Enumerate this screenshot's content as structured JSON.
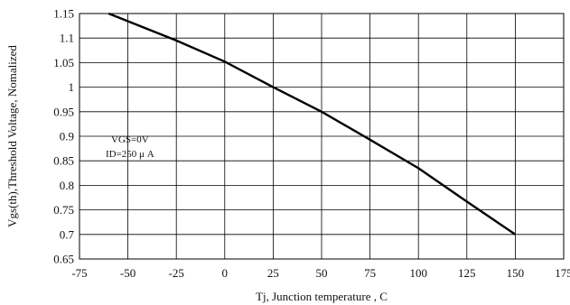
{
  "chart_data": {
    "type": "line",
    "title": "",
    "xlabel": "Tj, Junction temperature , C",
    "ylabel": "Vgs(th),Threshold Voltage, Nomalized",
    "xlim": [
      -75,
      175
    ],
    "ylim": [
      0.65,
      1.15
    ],
    "xticks": [
      -75,
      -50,
      -25,
      0,
      25,
      50,
      75,
      100,
      125,
      150,
      175
    ],
    "yticks": [
      0.65,
      0.7,
      0.75,
      0.8,
      0.85,
      0.9,
      0.95,
      1,
      1.05,
      1.1,
      1.15
    ],
    "x_tick_labels": [
      "-75",
      "-50",
      "-25",
      "0",
      "25",
      "50",
      "75",
      "100",
      "125",
      "150",
      "175"
    ],
    "y_tick_labels": [
      "0.65",
      "0.7",
      "0.75",
      "0.8",
      "0.85",
      "0.9",
      "0.95",
      "1",
      "1.05",
      "1.1",
      "1.15"
    ],
    "grid": true,
    "series": [
      {
        "x": [
          -60,
          -25,
          0,
          25,
          50,
          75,
          100,
          125,
          150
        ],
        "y": [
          1.15,
          1.095,
          1.052,
          1.0,
          0.95,
          0.893,
          0.835,
          0.767,
          0.7
        ]
      }
    ],
    "annotations": [
      "VGS=0V",
      "ID=250 μ A"
    ]
  }
}
